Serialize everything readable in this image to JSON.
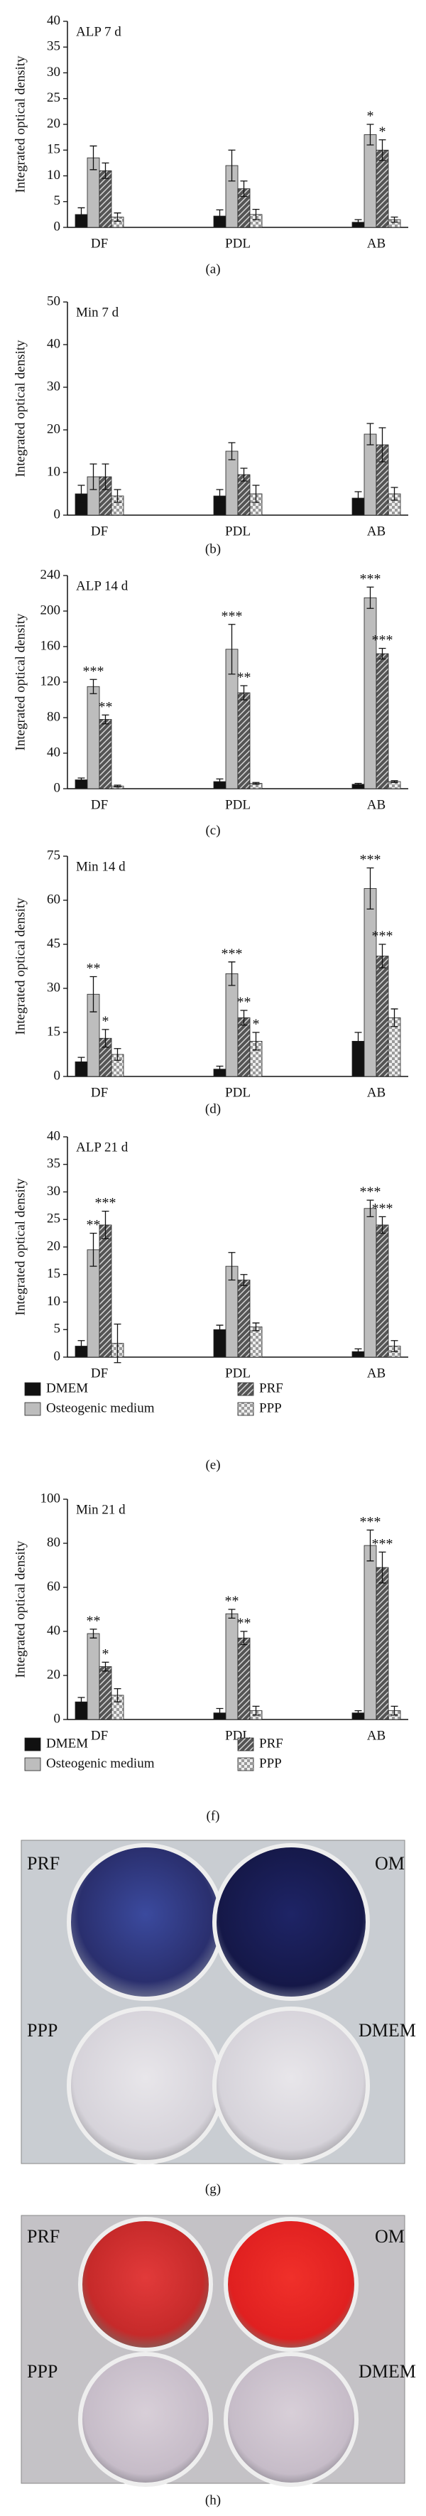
{
  "chart_data": [
    {
      "type": "bar",
      "title": "ALP 7 d",
      "caption": "(a)",
      "y_label": "Integrated optical density",
      "categories": [
        "DF",
        "PDL",
        "AB"
      ],
      "ylim": [
        0,
        40
      ],
      "yticks": [
        0,
        5,
        10,
        15,
        20,
        25,
        30,
        35,
        40
      ],
      "legend": false,
      "series": [
        {
          "name": "DMEM",
          "color": "#111111",
          "fill": "solid",
          "values": [
            2.5,
            2.2,
            1
          ],
          "errors": [
            1.3,
            1.2,
            0.5
          ],
          "stars": [
            null,
            null,
            null
          ]
        },
        {
          "name": "Osteogenic medium",
          "color": "#bdbdbd",
          "fill": "solid",
          "values": [
            13.5,
            12,
            18
          ],
          "errors": [
            2.3,
            3,
            2
          ],
          "stars": [
            null,
            null,
            "*"
          ]
        },
        {
          "name": "PRF",
          "color": "#555555",
          "fill": "hatch",
          "values": [
            11,
            7.5,
            15
          ],
          "errors": [
            1.5,
            1.5,
            2
          ],
          "stars": [
            null,
            null,
            "*"
          ]
        },
        {
          "name": "PPP",
          "color": "#9a9a9a",
          "fill": "checker",
          "values": [
            2,
            2.5,
            1.5
          ],
          "errors": [
            0.8,
            1,
            0.5
          ],
          "stars": [
            null,
            null,
            null
          ]
        }
      ]
    },
    {
      "type": "bar",
      "title": "Min 7 d",
      "caption": "(b)",
      "y_label": "Integrated optical density",
      "categories": [
        "DF",
        "PDL",
        "AB"
      ],
      "ylim": [
        0,
        50
      ],
      "yticks": [
        0,
        10,
        20,
        30,
        40,
        50
      ],
      "legend": false,
      "series": [
        {
          "name": "DMEM",
          "color": "#111111",
          "fill": "solid",
          "values": [
            5,
            4.5,
            4
          ],
          "errors": [
            2,
            1.5,
            1.5
          ],
          "stars": [
            null,
            null,
            null
          ]
        },
        {
          "name": "Osteogenic medium",
          "color": "#bdbdbd",
          "fill": "solid",
          "values": [
            9,
            15,
            19
          ],
          "errors": [
            3,
            2,
            2.5
          ],
          "stars": [
            null,
            null,
            null
          ]
        },
        {
          "name": "PRF",
          "color": "#555555",
          "fill": "hatch",
          "values": [
            9,
            9.5,
            16.5
          ],
          "errors": [
            3,
            1.5,
            4
          ],
          "stars": [
            null,
            null,
            null
          ]
        },
        {
          "name": "PPP",
          "color": "#9a9a9a",
          "fill": "checker",
          "values": [
            4.5,
            5,
            5
          ],
          "errors": [
            1.5,
            2,
            1.5
          ],
          "stars": [
            null,
            null,
            null
          ]
        }
      ]
    },
    {
      "type": "bar",
      "title": "ALP 14 d",
      "caption": "(c)",
      "y_label": "Integrated optical density",
      "categories": [
        "DF",
        "PDL",
        "AB"
      ],
      "ylim": [
        0,
        240
      ],
      "yticks": [
        0,
        40,
        80,
        120,
        160,
        200,
        240
      ],
      "legend": false,
      "series": [
        {
          "name": "DMEM",
          "color": "#111111",
          "fill": "solid",
          "values": [
            10,
            8,
            5
          ],
          "errors": [
            2,
            3,
            1
          ],
          "stars": [
            null,
            null,
            null
          ]
        },
        {
          "name": "Osteogenic medium",
          "color": "#bdbdbd",
          "fill": "solid",
          "values": [
            115,
            157,
            215
          ],
          "errors": [
            8,
            28,
            12
          ],
          "stars": [
            "***",
            "***",
            "***"
          ]
        },
        {
          "name": "PRF",
          "color": "#555555",
          "fill": "hatch",
          "values": [
            78,
            108,
            152
          ],
          "errors": [
            5,
            8,
            6
          ],
          "stars": [
            "**",
            "**",
            "***"
          ]
        },
        {
          "name": "PPP",
          "color": "#9a9a9a",
          "fill": "checker",
          "values": [
            3,
            6,
            8
          ],
          "errors": [
            1,
            1,
            1
          ],
          "stars": [
            null,
            null,
            null
          ]
        }
      ]
    },
    {
      "type": "bar",
      "title": "Min 14 d",
      "caption": "(d)",
      "y_label": "Integrated optical density",
      "categories": [
        "DF",
        "PDL",
        "AB"
      ],
      "ylim": [
        0,
        75
      ],
      "yticks": [
        0,
        15,
        30,
        45,
        60,
        75
      ],
      "legend": false,
      "series": [
        {
          "name": "DMEM",
          "color": "#111111",
          "fill": "solid",
          "values": [
            5,
            2.5,
            12
          ],
          "errors": [
            1.5,
            1,
            3
          ],
          "stars": [
            null,
            null,
            null
          ]
        },
        {
          "name": "Osteogenic medium",
          "color": "#bdbdbd",
          "fill": "solid",
          "values": [
            28,
            35,
            64
          ],
          "errors": [
            6,
            4,
            7
          ],
          "stars": [
            "**",
            "***",
            "***"
          ]
        },
        {
          "name": "PRF",
          "color": "#555555",
          "fill": "hatch",
          "values": [
            13,
            20,
            41
          ],
          "errors": [
            3,
            2.5,
            4
          ],
          "stars": [
            "*",
            "**",
            "***"
          ]
        },
        {
          "name": "PPP",
          "color": "#9a9a9a",
          "fill": "checker",
          "values": [
            7.5,
            12,
            20
          ],
          "errors": [
            2,
            3,
            3
          ],
          "stars": [
            null,
            "*",
            null
          ]
        }
      ]
    },
    {
      "type": "bar",
      "title": "ALP 21 d",
      "caption": "(e)",
      "y_label": "Integrated optical density",
      "categories": [
        "DF",
        "PDL",
        "AB"
      ],
      "ylim": [
        0,
        40
      ],
      "yticks": [
        0,
        5,
        10,
        15,
        20,
        25,
        30,
        35,
        40
      ],
      "legend": true,
      "series": [
        {
          "name": "DMEM",
          "color": "#111111",
          "fill": "solid",
          "values": [
            2,
            5,
            1
          ],
          "errors": [
            1,
            0.8,
            0.5
          ],
          "stars": [
            null,
            null,
            null
          ]
        },
        {
          "name": "Osteogenic medium",
          "color": "#bdbdbd",
          "fill": "solid",
          "values": [
            19.5,
            16.5,
            27
          ],
          "errors": [
            3,
            2.5,
            1.5
          ],
          "stars": [
            "**",
            null,
            "***"
          ]
        },
        {
          "name": "PRF",
          "color": "#555555",
          "fill": "hatch",
          "values": [
            24,
            14,
            24
          ],
          "errors": [
            2.5,
            1,
            1.5
          ],
          "stars": [
            "***",
            null,
            "***"
          ]
        },
        {
          "name": "PPP",
          "color": "#9a9a9a",
          "fill": "checker",
          "values": [
            2.5,
            5.5,
            2
          ],
          "errors": [
            3.5,
            0.7,
            1
          ],
          "stars": [
            null,
            null,
            null
          ]
        }
      ]
    },
    {
      "type": "bar",
      "title": "Min 21 d",
      "caption": "(f)",
      "y_label": "Integrated optical density",
      "categories": [
        "DF",
        "PDL",
        "AB"
      ],
      "ylim": [
        0,
        100
      ],
      "yticks": [
        0,
        20,
        40,
        60,
        80,
        100
      ],
      "legend": true,
      "series": [
        {
          "name": "DMEM",
          "color": "#111111",
          "fill": "solid",
          "values": [
            8,
            3,
            3
          ],
          "errors": [
            2,
            2,
            1
          ],
          "stars": [
            null,
            null,
            null
          ]
        },
        {
          "name": "Osteogenic medium",
          "color": "#bdbdbd",
          "fill": "solid",
          "values": [
            39,
            48,
            79
          ],
          "errors": [
            2,
            2,
            7
          ],
          "stars": [
            "**",
            "**",
            "***"
          ]
        },
        {
          "name": "PRF",
          "color": "#555555",
          "fill": "hatch",
          "values": [
            24,
            37,
            69
          ],
          "errors": [
            2,
            3,
            7
          ],
          "stars": [
            "*",
            "**",
            "***"
          ]
        },
        {
          "name": "PPP",
          "color": "#9a9a9a",
          "fill": "checker",
          "values": [
            11,
            4,
            4
          ],
          "errors": [
            3,
            2,
            2
          ],
          "stars": [
            null,
            null,
            null
          ]
        }
      ]
    }
  ],
  "photos": [
    {
      "caption": "(g)",
      "labels": [
        "PRF",
        "OM",
        "PPP",
        "DMEM"
      ]
    },
    {
      "caption": "(h)",
      "labels": [
        "PRF",
        "OM",
        "PPP",
        "DMEM"
      ]
    }
  ]
}
